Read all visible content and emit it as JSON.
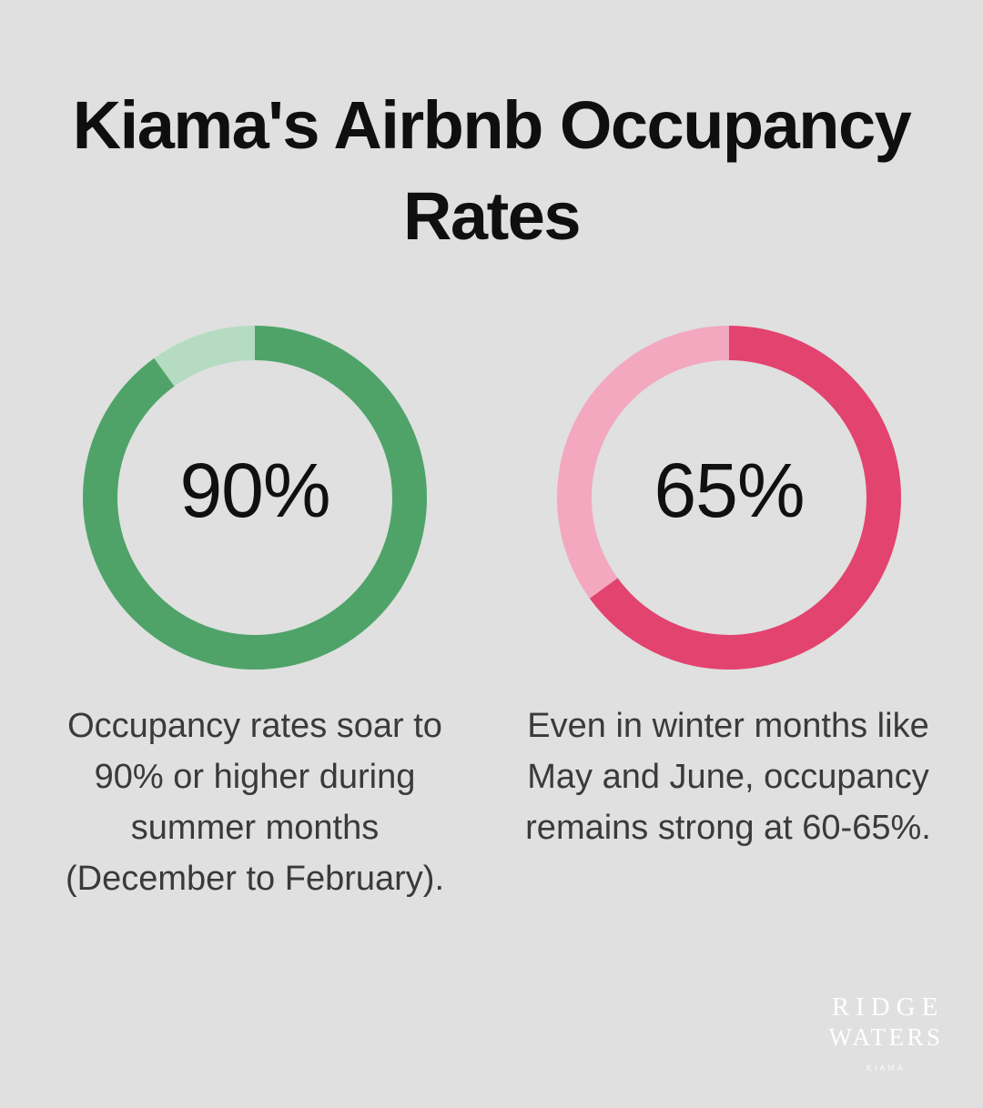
{
  "background_color": "#dfe0df",
  "title": {
    "line1": "Kiama's Airbnb Occupancy",
    "line2": "Rates",
    "color": "#0f0f0f"
  },
  "chart_data": [
    {
      "type": "pie",
      "style": "donut",
      "center_label": "90%",
      "values": [
        90,
        10
      ],
      "segment_colors": [
        "#4fa369",
        "#b5dcc0"
      ],
      "start_angle_deg": 0,
      "direction": "clockwise",
      "caption": "Occupancy rates soar to 90% or higher during summer months (December to February).",
      "caption_lines": [
        "Occupancy rates soar to",
        "90% or higher during",
        "summer months",
        "(December to February)."
      ]
    },
    {
      "type": "pie",
      "style": "donut",
      "center_label": "65%",
      "values": [
        65,
        35
      ],
      "segment_colors": [
        "#e2436f",
        "#f3a8c0"
      ],
      "start_angle_deg": 0,
      "direction": "clockwise",
      "caption": "Even in winter months like May and June, occupancy remains strong at 60-65%.",
      "caption_lines": [
        "Even in winter months like",
        "May and June, occupancy",
        "remains strong at 60-65%."
      ]
    }
  ],
  "logo": {
    "line1": "RIDGE",
    "line2": "WATERS",
    "line3": "KIAMA",
    "color": "#ffffff"
  }
}
